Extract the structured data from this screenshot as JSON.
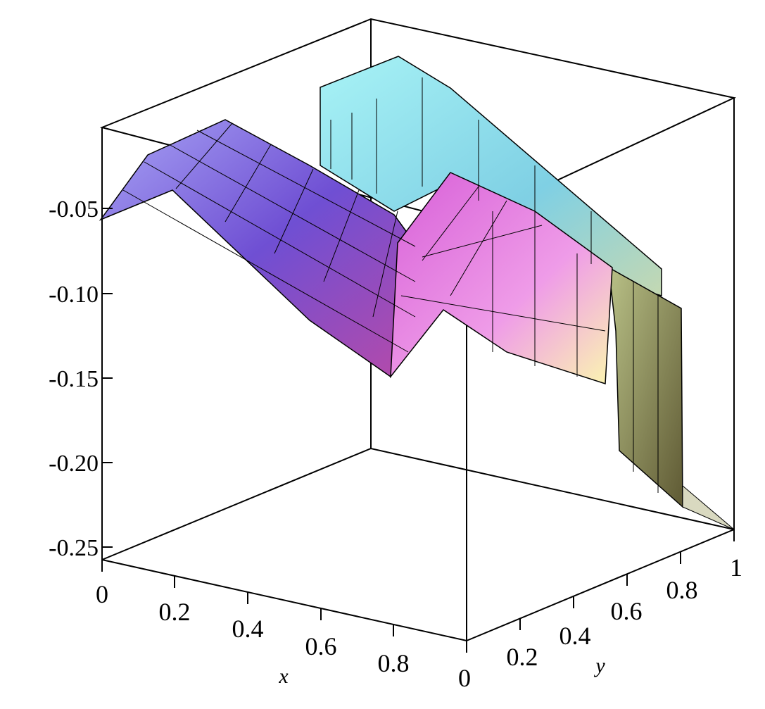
{
  "chart_data": {
    "type": "surface3d",
    "title": "",
    "xlabel": "x",
    "ylabel": "y",
    "zlabel": "",
    "xlim": [
      0,
      1
    ],
    "ylim": [
      0,
      1
    ],
    "zlim": [
      -0.26,
      0.0
    ],
    "x_tick_labels": [
      "0",
      "0.2",
      "0.4",
      "0.6",
      "0.8"
    ],
    "y_tick_labels": [
      "0",
      "0.2",
      "0.4",
      "0.6",
      "0.8",
      "1"
    ],
    "z_tick_labels": [
      "-0.05",
      "-0.10",
      "-0.15",
      "-0.20",
      "-0.25"
    ],
    "grid": false,
    "legend": "none",
    "surface": {
      "description_values": "piecewise-linear surface over the unit square",
      "grid_lines_x": 14,
      "grid_lines_y": 14,
      "z_at_x": {
        "x": [
          0.0,
          0.2,
          0.4,
          0.6,
          0.8,
          1.0
        ],
        "z_y0": [
          -0.057,
          -0.03,
          -0.08,
          -0.13,
          -0.14,
          -0.26
        ],
        "z_y_mid": [
          -0.1,
          -0.03,
          -0.05,
          -0.1,
          -0.12,
          -0.26
        ],
        "z_y1": [
          -0.03,
          -0.01,
          -0.06,
          -0.1,
          -0.13,
          -0.26
        ]
      },
      "color_scheme": [
        "#9d9af0",
        "#7a55d6",
        "#c04fc0",
        "#e68ae6",
        "#f6f2a6",
        "#9ce6f2",
        "#6f6a3a"
      ]
    }
  }
}
